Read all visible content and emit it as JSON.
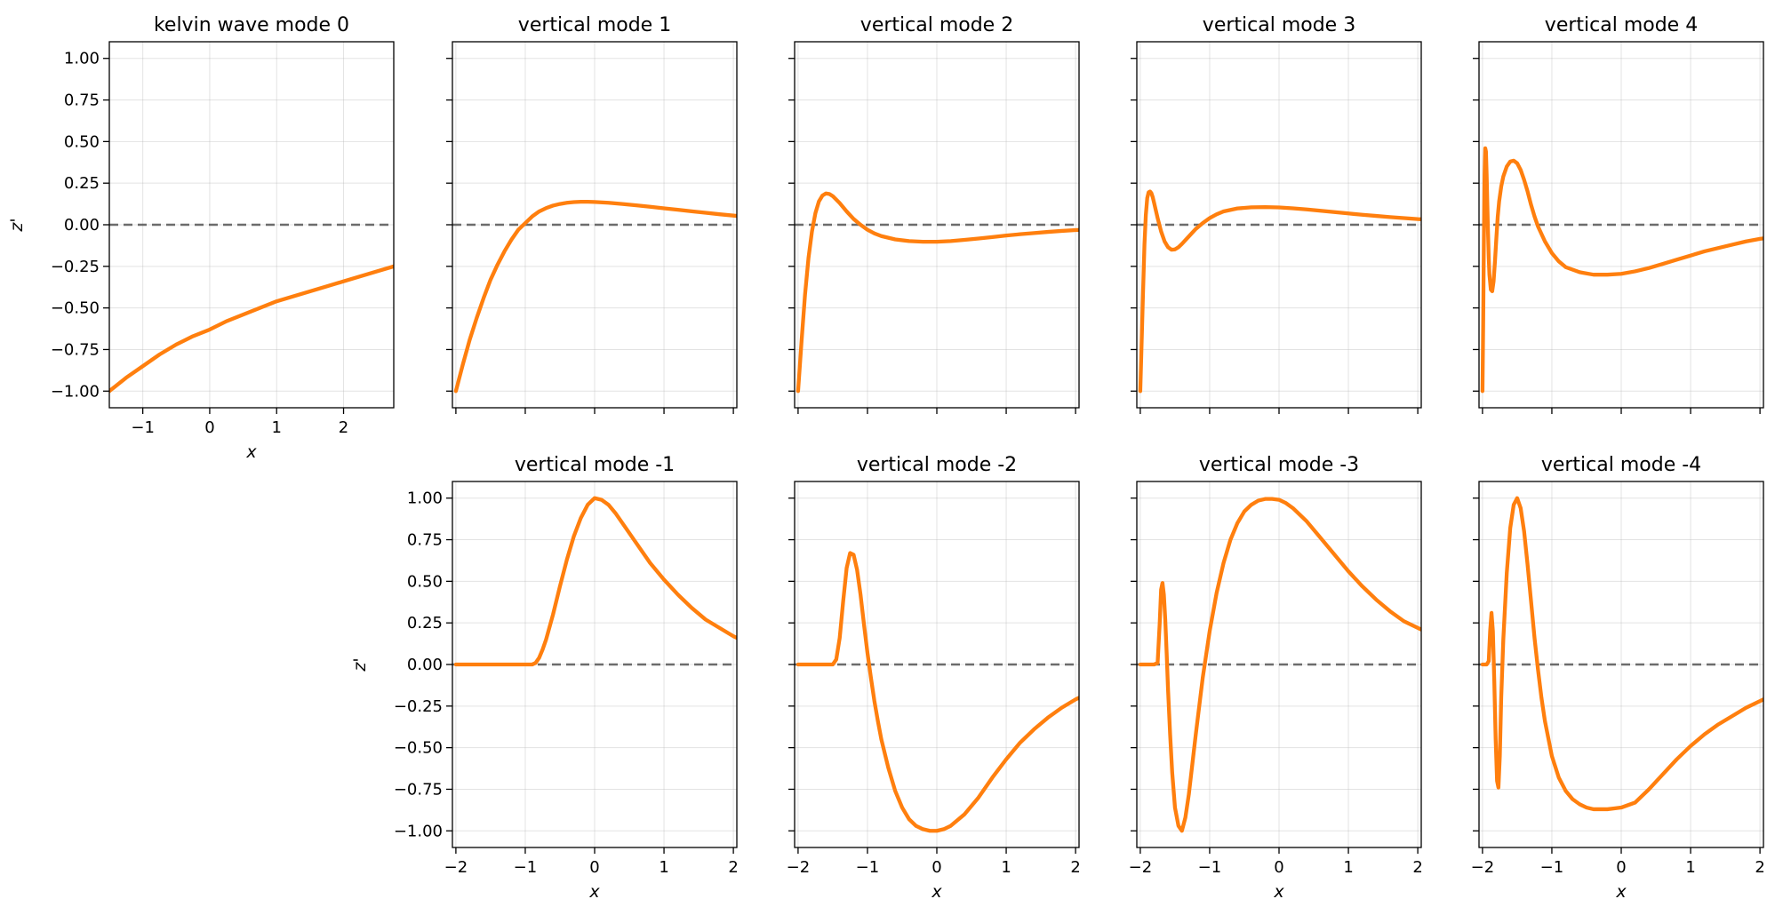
{
  "chart_data": [
    {
      "type": "line",
      "title": "kelvin wave mode 0",
      "xlabel": "x",
      "ylabel": "z'",
      "xlim": [
        -1.5,
        2.75
      ],
      "ylim": [
        -1.1,
        1.1
      ],
      "xticks": [
        -1,
        0,
        1,
        2
      ],
      "yticks": [
        -1.0,
        -0.75,
        -0.5,
        -0.25,
        0.0,
        0.25,
        0.5,
        0.75,
        1.0
      ],
      "show_xtick_labels": true,
      "show_ytick_labels": true,
      "grid": true,
      "zero_line": true,
      "color": "#ff7f0e",
      "series": [
        {
          "x": [
            -1.5,
            -1.25,
            -1.0,
            -0.75,
            -0.5,
            -0.25,
            0.0,
            0.25,
            0.5,
            0.75,
            1.0,
            1.25,
            1.5,
            1.75,
            2.0,
            2.25,
            2.5,
            2.75
          ],
          "values": [
            -1.0,
            -0.92,
            -0.85,
            -0.78,
            -0.72,
            -0.67,
            -0.63,
            -0.58,
            -0.54,
            -0.5,
            -0.46,
            -0.43,
            -0.4,
            -0.37,
            -0.34,
            -0.31,
            -0.28,
            -0.25
          ]
        }
      ]
    },
    {
      "type": "line",
      "title": "vertical mode 1",
      "xlabel": "",
      "ylabel": "",
      "xlim": [
        -2.05,
        2.05
      ],
      "ylim": [
        -1.1,
        1.1
      ],
      "xticks": [
        -2,
        -1,
        0,
        1,
        2
      ],
      "yticks": [
        -1.0,
        -0.75,
        -0.5,
        -0.25,
        0.0,
        0.25,
        0.5,
        0.75,
        1.0
      ],
      "show_xtick_labels": false,
      "show_ytick_labels": false,
      "grid": true,
      "zero_line": true,
      "color": "#ff7f0e",
      "series": [
        {
          "x": [
            -2.0,
            -1.9,
            -1.8,
            -1.7,
            -1.6,
            -1.5,
            -1.4,
            -1.3,
            -1.2,
            -1.1,
            -1.0,
            -0.9,
            -0.8,
            -0.7,
            -0.6,
            -0.5,
            -0.4,
            -0.3,
            -0.2,
            -0.1,
            0.0,
            0.2,
            0.4,
            0.6,
            0.8,
            1.0,
            1.2,
            1.4,
            1.6,
            1.8,
            2.0,
            2.05
          ],
          "values": [
            -1.0,
            -0.84,
            -0.69,
            -0.56,
            -0.44,
            -0.33,
            -0.24,
            -0.16,
            -0.09,
            -0.03,
            0.01,
            0.05,
            0.08,
            0.1,
            0.115,
            0.125,
            0.132,
            0.136,
            0.138,
            0.138,
            0.137,
            0.132,
            0.125,
            0.117,
            0.108,
            0.099,
            0.09,
            0.081,
            0.072,
            0.063,
            0.055,
            0.053
          ]
        }
      ]
    },
    {
      "type": "line",
      "title": "vertical mode 2",
      "xlabel": "",
      "ylabel": "",
      "xlim": [
        -2.05,
        2.05
      ],
      "ylim": [
        -1.1,
        1.1
      ],
      "xticks": [
        -2,
        -1,
        0,
        1,
        2
      ],
      "yticks": [
        -1.0,
        -0.75,
        -0.5,
        -0.25,
        0.0,
        0.25,
        0.5,
        0.75,
        1.0
      ],
      "show_xtick_labels": false,
      "show_ytick_labels": false,
      "grid": true,
      "zero_line": true,
      "color": "#ff7f0e",
      "series": [
        {
          "x": [
            -2.0,
            -1.95,
            -1.9,
            -1.85,
            -1.8,
            -1.75,
            -1.7,
            -1.65,
            -1.6,
            -1.55,
            -1.5,
            -1.4,
            -1.3,
            -1.2,
            -1.1,
            -1.0,
            -0.9,
            -0.8,
            -0.6,
            -0.4,
            -0.2,
            0.0,
            0.2,
            0.4,
            0.6,
            0.8,
            1.0,
            1.2,
            1.4,
            1.6,
            1.8,
            2.0,
            2.05
          ],
          "values": [
            -1.0,
            -0.7,
            -0.42,
            -0.2,
            -0.04,
            0.07,
            0.14,
            0.175,
            0.188,
            0.185,
            0.172,
            0.13,
            0.08,
            0.035,
            0.0,
            -0.03,
            -0.052,
            -0.068,
            -0.088,
            -0.098,
            -0.102,
            -0.102,
            -0.098,
            -0.091,
            -0.083,
            -0.074,
            -0.065,
            -0.057,
            -0.05,
            -0.043,
            -0.037,
            -0.032,
            -0.031
          ]
        }
      ]
    },
    {
      "type": "line",
      "title": "vertical mode 3",
      "xlabel": "",
      "ylabel": "",
      "xlim": [
        -2.05,
        2.05
      ],
      "ylim": [
        -1.1,
        1.1
      ],
      "xticks": [
        -2,
        -1,
        0,
        1,
        2
      ],
      "yticks": [
        -1.0,
        -0.75,
        -0.5,
        -0.25,
        0.0,
        0.25,
        0.5,
        0.75,
        1.0
      ],
      "show_xtick_labels": false,
      "show_ytick_labels": false,
      "grid": true,
      "zero_line": true,
      "color": "#ff7f0e",
      "series": [
        {
          "x": [
            -2.0,
            -1.98,
            -1.96,
            -1.94,
            -1.92,
            -1.9,
            -1.88,
            -1.86,
            -1.84,
            -1.82,
            -1.8,
            -1.75,
            -1.7,
            -1.65,
            -1.6,
            -1.55,
            -1.5,
            -1.45,
            -1.4,
            -1.3,
            -1.2,
            -1.1,
            -1.0,
            -0.9,
            -0.8,
            -0.6,
            -0.4,
            -0.2,
            0.0,
            0.2,
            0.4,
            0.6,
            0.8,
            1.0,
            1.2,
            1.4,
            1.6,
            1.8,
            2.0,
            2.05
          ],
          "values": [
            -1.0,
            -0.7,
            -0.4,
            -0.12,
            0.06,
            0.16,
            0.195,
            0.2,
            0.19,
            0.165,
            0.13,
            0.04,
            -0.04,
            -0.1,
            -0.135,
            -0.15,
            -0.148,
            -0.135,
            -0.115,
            -0.07,
            -0.025,
            0.01,
            0.04,
            0.063,
            0.08,
            0.098,
            0.105,
            0.106,
            0.104,
            0.099,
            0.092,
            0.084,
            0.076,
            0.068,
            0.06,
            0.053,
            0.046,
            0.04,
            0.034,
            0.033
          ]
        }
      ]
    },
    {
      "type": "line",
      "title": "vertical mode 4",
      "xlabel": "",
      "ylabel": "",
      "xlim": [
        -2.05,
        2.05
      ],
      "ylim": [
        -1.1,
        1.1
      ],
      "xticks": [
        -2,
        -1,
        0,
        1,
        2
      ],
      "yticks": [
        -1.0,
        -0.75,
        -0.5,
        -0.25,
        0.0,
        0.25,
        0.5,
        0.75,
        1.0
      ],
      "show_xtick_labels": false,
      "show_ytick_labels": false,
      "grid": true,
      "zero_line": true,
      "color": "#ff7f0e",
      "series": [
        {
          "x": [
            -2.0,
            -1.99,
            -1.98,
            -1.97,
            -1.96,
            -1.95,
            -1.94,
            -1.93,
            -1.92,
            -1.91,
            -1.9,
            -1.88,
            -1.86,
            -1.84,
            -1.82,
            -1.8,
            -1.78,
            -1.76,
            -1.73,
            -1.7,
            -1.65,
            -1.6,
            -1.55,
            -1.5,
            -1.45,
            -1.4,
            -1.35,
            -1.3,
            -1.25,
            -1.2,
            -1.1,
            -1.0,
            -0.9,
            -0.8,
            -0.6,
            -0.4,
            -0.2,
            0.0,
            0.2,
            0.4,
            0.6,
            0.8,
            1.0,
            1.2,
            1.4,
            1.6,
            1.8,
            2.0,
            2.05
          ],
          "values": [
            -1.0,
            -0.6,
            -0.1,
            0.3,
            0.46,
            0.44,
            0.3,
            0.12,
            -0.05,
            -0.2,
            -0.3,
            -0.39,
            -0.4,
            -0.34,
            -0.22,
            -0.08,
            0.05,
            0.14,
            0.23,
            0.29,
            0.35,
            0.38,
            0.385,
            0.37,
            0.33,
            0.27,
            0.2,
            0.12,
            0.05,
            -0.01,
            -0.1,
            -0.17,
            -0.22,
            -0.255,
            -0.285,
            -0.3,
            -0.3,
            -0.295,
            -0.28,
            -0.26,
            -0.235,
            -0.21,
            -0.185,
            -0.16,
            -0.14,
            -0.12,
            -0.1,
            -0.085,
            -0.082
          ]
        }
      ]
    },
    {
      "type": "line",
      "title": "vertical mode -1",
      "xlabel": "x",
      "ylabel": "z'",
      "xlim": [
        -2.05,
        2.05
      ],
      "ylim": [
        -1.1,
        1.1
      ],
      "xticks": [
        -2,
        -1,
        0,
        1,
        2
      ],
      "yticks": [
        -1.0,
        -0.75,
        -0.5,
        -0.25,
        0.0,
        0.25,
        0.5,
        0.75,
        1.0
      ],
      "show_xtick_labels": true,
      "show_ytick_labels": true,
      "grid": true,
      "zero_line": true,
      "color": "#ff7f0e",
      "series": [
        {
          "x": [
            -2.0,
            -1.5,
            -1.0,
            -0.9,
            -0.85,
            -0.8,
            -0.75,
            -0.7,
            -0.6,
            -0.5,
            -0.4,
            -0.3,
            -0.2,
            -0.1,
            0.0,
            0.1,
            0.2,
            0.3,
            0.4,
            0.6,
            0.8,
            1.0,
            1.2,
            1.4,
            1.6,
            1.8,
            2.0,
            2.05
          ],
          "values": [
            0.0,
            0.0,
            0.0,
            0.0,
            0.01,
            0.04,
            0.09,
            0.15,
            0.3,
            0.47,
            0.63,
            0.77,
            0.88,
            0.96,
            1.0,
            0.99,
            0.96,
            0.91,
            0.85,
            0.73,
            0.61,
            0.51,
            0.42,
            0.34,
            0.27,
            0.22,
            0.17,
            0.16
          ]
        }
      ]
    },
    {
      "type": "line",
      "title": "vertical mode -2",
      "xlabel": "x",
      "ylabel": "",
      "xlim": [
        -2.05,
        2.05
      ],
      "ylim": [
        -1.1,
        1.1
      ],
      "xticks": [
        -2,
        -1,
        0,
        1,
        2
      ],
      "yticks": [
        -1.0,
        -0.75,
        -0.5,
        -0.25,
        0.0,
        0.25,
        0.5,
        0.75,
        1.0
      ],
      "show_xtick_labels": true,
      "show_ytick_labels": false,
      "grid": true,
      "zero_line": true,
      "color": "#ff7f0e",
      "series": [
        {
          "x": [
            -2.0,
            -1.6,
            -1.5,
            -1.45,
            -1.4,
            -1.35,
            -1.3,
            -1.25,
            -1.2,
            -1.15,
            -1.1,
            -1.05,
            -1.0,
            -0.95,
            -0.9,
            -0.85,
            -0.8,
            -0.7,
            -0.6,
            -0.5,
            -0.4,
            -0.3,
            -0.2,
            -0.1,
            0.0,
            0.1,
            0.2,
            0.4,
            0.6,
            0.8,
            1.0,
            1.2,
            1.4,
            1.6,
            1.8,
            2.0,
            2.05
          ],
          "values": [
            0.0,
            0.0,
            0.0,
            0.03,
            0.16,
            0.38,
            0.58,
            0.67,
            0.66,
            0.57,
            0.42,
            0.24,
            0.07,
            -0.08,
            -0.22,
            -0.34,
            -0.45,
            -0.62,
            -0.76,
            -0.86,
            -0.93,
            -0.97,
            -0.99,
            -1.0,
            -1.0,
            -0.99,
            -0.97,
            -0.9,
            -0.8,
            -0.68,
            -0.57,
            -0.47,
            -0.39,
            -0.32,
            -0.26,
            -0.21,
            -0.2
          ]
        }
      ]
    },
    {
      "type": "line",
      "title": "vertical mode -3",
      "xlabel": "x",
      "ylabel": "",
      "xlim": [
        -2.05,
        2.05
      ],
      "ylim": [
        -1.1,
        1.1
      ],
      "xticks": [
        -2,
        -1,
        0,
        1,
        2
      ],
      "yticks": [
        -1.0,
        -0.75,
        -0.5,
        -0.25,
        0.0,
        0.25,
        0.5,
        0.75,
        1.0
      ],
      "show_xtick_labels": true,
      "show_ytick_labels": false,
      "grid": true,
      "zero_line": true,
      "color": "#ff7f0e",
      "series": [
        {
          "x": [
            -2.0,
            -1.8,
            -1.75,
            -1.72,
            -1.7,
            -1.68,
            -1.66,
            -1.64,
            -1.62,
            -1.6,
            -1.57,
            -1.54,
            -1.5,
            -1.45,
            -1.4,
            -1.35,
            -1.3,
            -1.25,
            -1.2,
            -1.1,
            -1.0,
            -0.9,
            -0.8,
            -0.7,
            -0.6,
            -0.5,
            -0.4,
            -0.3,
            -0.2,
            -0.1,
            0.0,
            0.1,
            0.2,
            0.4,
            0.6,
            0.8,
            1.0,
            1.2,
            1.4,
            1.6,
            1.8,
            2.0,
            2.05
          ],
          "values": [
            0.0,
            0.0,
            0.01,
            0.25,
            0.45,
            0.49,
            0.42,
            0.27,
            0.07,
            -0.15,
            -0.42,
            -0.65,
            -0.86,
            -0.97,
            -1.0,
            -0.92,
            -0.78,
            -0.6,
            -0.42,
            -0.08,
            0.2,
            0.43,
            0.61,
            0.75,
            0.85,
            0.92,
            0.96,
            0.985,
            0.995,
            0.995,
            0.99,
            0.97,
            0.94,
            0.86,
            0.76,
            0.66,
            0.56,
            0.47,
            0.39,
            0.32,
            0.26,
            0.22,
            0.21
          ]
        }
      ]
    },
    {
      "type": "line",
      "title": "vertical mode -4",
      "xlabel": "x",
      "ylabel": "",
      "xlim": [
        -2.05,
        2.05
      ],
      "ylim": [
        -1.1,
        1.1
      ],
      "xticks": [
        -2,
        -1,
        0,
        1,
        2
      ],
      "yticks": [
        -1.0,
        -0.75,
        -0.5,
        -0.25,
        0.0,
        0.25,
        0.5,
        0.75,
        1.0
      ],
      "show_xtick_labels": true,
      "show_ytick_labels": false,
      "grid": true,
      "zero_line": true,
      "color": "#ff7f0e",
      "series": [
        {
          "x": [
            -2.0,
            -1.94,
            -1.91,
            -1.89,
            -1.87,
            -1.85,
            -1.83,
            -1.81,
            -1.79,
            -1.77,
            -1.75,
            -1.73,
            -1.7,
            -1.65,
            -1.6,
            -1.55,
            -1.5,
            -1.45,
            -1.4,
            -1.35,
            -1.3,
            -1.25,
            -1.2,
            -1.15,
            -1.1,
            -1.0,
            -0.9,
            -0.8,
            -0.7,
            -0.6,
            -0.5,
            -0.4,
            -0.3,
            -0.2,
            -0.1,
            0.0,
            0.2,
            0.4,
            0.6,
            0.8,
            1.0,
            1.2,
            1.4,
            1.6,
            1.8,
            2.0,
            2.05
          ],
          "values": [
            0.0,
            0.0,
            0.02,
            0.2,
            0.31,
            0.2,
            -0.1,
            -0.45,
            -0.7,
            -0.74,
            -0.55,
            -0.2,
            0.15,
            0.55,
            0.82,
            0.96,
            1.0,
            0.94,
            0.8,
            0.6,
            0.38,
            0.16,
            -0.03,
            -0.2,
            -0.34,
            -0.55,
            -0.68,
            -0.76,
            -0.81,
            -0.84,
            -0.86,
            -0.87,
            -0.87,
            -0.87,
            -0.865,
            -0.86,
            -0.83,
            -0.75,
            -0.66,
            -0.57,
            -0.49,
            -0.42,
            -0.36,
            -0.31,
            -0.26,
            -0.22,
            -0.21
          ]
        }
      ]
    }
  ]
}
